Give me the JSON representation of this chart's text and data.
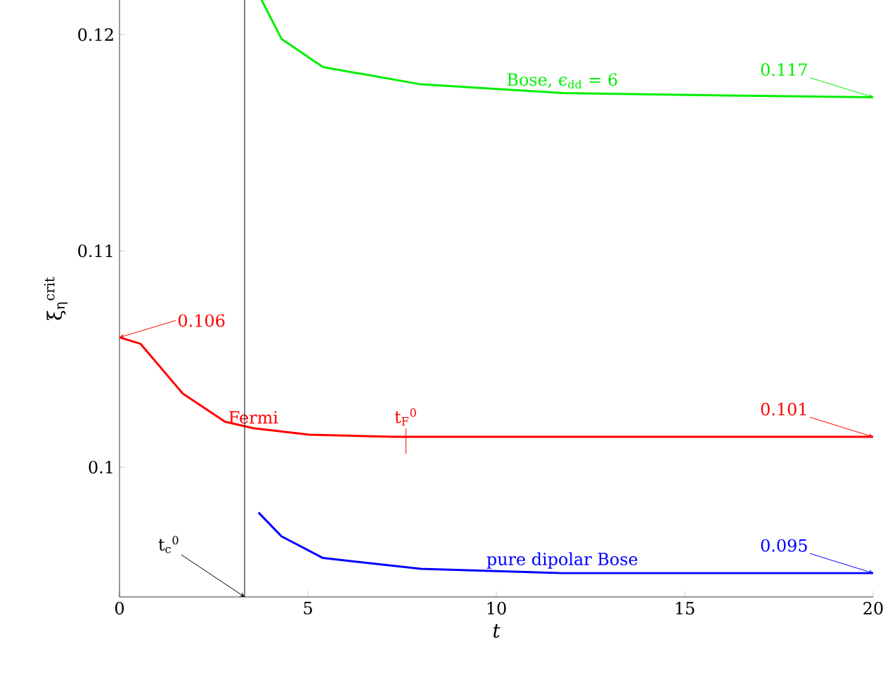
{
  "chart_data": {
    "type": "line",
    "xlabel": "t",
    "ylabel": "ξ$_{η}$$^{crit}$",
    "xlim": [
      0,
      20
    ],
    "ylim": [
      0.094,
      0.1216
    ],
    "xticks": [
      0,
      5,
      10,
      15,
      20
    ],
    "yticks": [
      0.1,
      0.11,
      0.12
    ],
    "grid": false,
    "legend": false,
    "marker": "none",
    "line_style": "solid",
    "series": [
      {
        "name": "Bose, ϵ$_{dd}$ = 6",
        "color": "#00ee00",
        "x": [
          3.77,
          4.3,
          5.4,
          8.0,
          11.75,
          15.5,
          20
        ],
        "values": [
          0.1216,
          0.1198,
          0.1185,
          0.1177,
          0.1173,
          0.1172,
          0.1171
        ]
      },
      {
        "name": "Fermi",
        "color": "#ff0000",
        "x": [
          0,
          0.56,
          1.68,
          2.8,
          3.55,
          5.04,
          7.3,
          12,
          20
        ],
        "values": [
          0.106,
          0.1057,
          0.1034,
          0.1021,
          0.1018,
          0.1015,
          0.1014,
          0.1014,
          0.1014
        ]
      },
      {
        "name": "pure dipolar Bose",
        "color": "#0000ff",
        "x": [
          3.69,
          4.3,
          5.4,
          8.0,
          11.75,
          15.5,
          20
        ],
        "values": [
          0.0979,
          0.0968,
          0.0958,
          0.0953,
          0.0951,
          0.0951,
          0.0951
        ]
      }
    ],
    "ref_lines": [
      {
        "axis": "x",
        "value": 3.32,
        "label": "t$_{c}$$^{0}$",
        "color": "#000000"
      }
    ],
    "annotations": [
      {
        "text": "0.106",
        "x": 0,
        "y": 0.106
      },
      {
        "text": "0.117",
        "x": 20,
        "y": 0.1171
      },
      {
        "text": "0.101",
        "x": 20,
        "y": 0.1014
      },
      {
        "text": "0.095",
        "x": 20,
        "y": 0.0951
      },
      {
        "text": "t$_{F}$$^{0}$",
        "x": 7.6,
        "y": 0.1014
      }
    ]
  }
}
